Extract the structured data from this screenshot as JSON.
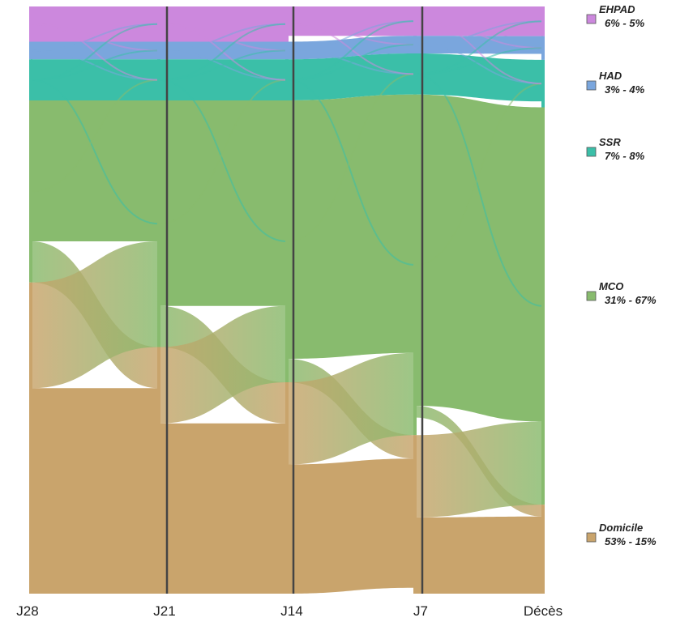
{
  "chart_data": {
    "type": "sankey",
    "stages": [
      "J28",
      "J21",
      "J14",
      "J7",
      "Décès"
    ],
    "categories": [
      {
        "key": "EHPAD",
        "label": "EHPAD",
        "range_text": "6% - 5%",
        "color": "#cc88dd"
      },
      {
        "key": "HAD",
        "label": "HAD",
        "range_text": "3% - 4%",
        "color": "#7aa6dd"
      },
      {
        "key": "SSR",
        "label": "SSR",
        "range_text": "7% - 8%",
        "color": "#3bbfa8"
      },
      {
        "key": "MCO",
        "label": "MCO",
        "range_text": "31% - 67%",
        "color": "#88bb6e"
      },
      {
        "key": "Domicile",
        "label": "Domicile",
        "range_text": "53% - 15%",
        "color": "#c9a46c"
      }
    ],
    "shares_percent": {
      "EHPAD": [
        6,
        6,
        6,
        5,
        5
      ],
      "HAD": [
        3,
        3,
        3,
        3,
        4
      ],
      "SSR": [
        7,
        7,
        7,
        7,
        8
      ],
      "MCO": [
        31,
        42,
        48,
        58,
        67
      ],
      "Domicile": [
        53,
        42,
        36,
        27,
        15
      ]
    },
    "main_flows": [
      {
        "from_stage": "J28",
        "to_stage": "J21",
        "from": "MCO",
        "to": "Domicile",
        "percent": 7
      },
      {
        "from_stage": "J28",
        "to_stage": "J21",
        "from": "Domicile",
        "to": "MCO",
        "percent": 18
      },
      {
        "from_stage": "J21",
        "to_stage": "J14",
        "from": "MCO",
        "to": "Domicile",
        "percent": 7
      },
      {
        "from_stage": "J21",
        "to_stage": "J14",
        "from": "Domicile",
        "to": "MCO",
        "percent": 13
      },
      {
        "from_stage": "J14",
        "to_stage": "J7",
        "from": "MCO",
        "to": "Domicile",
        "percent": 4
      },
      {
        "from_stage": "J14",
        "to_stage": "J7",
        "from": "Domicile",
        "to": "MCO",
        "percent": 14
      },
      {
        "from_stage": "J7",
        "to_stage": "Décès",
        "from": "MCO",
        "to": "Domicile",
        "percent": 2
      },
      {
        "from_stage": "J7",
        "to_stage": "Décès",
        "from": "Domicile",
        "to": "MCO",
        "percent": 14
      }
    ]
  }
}
